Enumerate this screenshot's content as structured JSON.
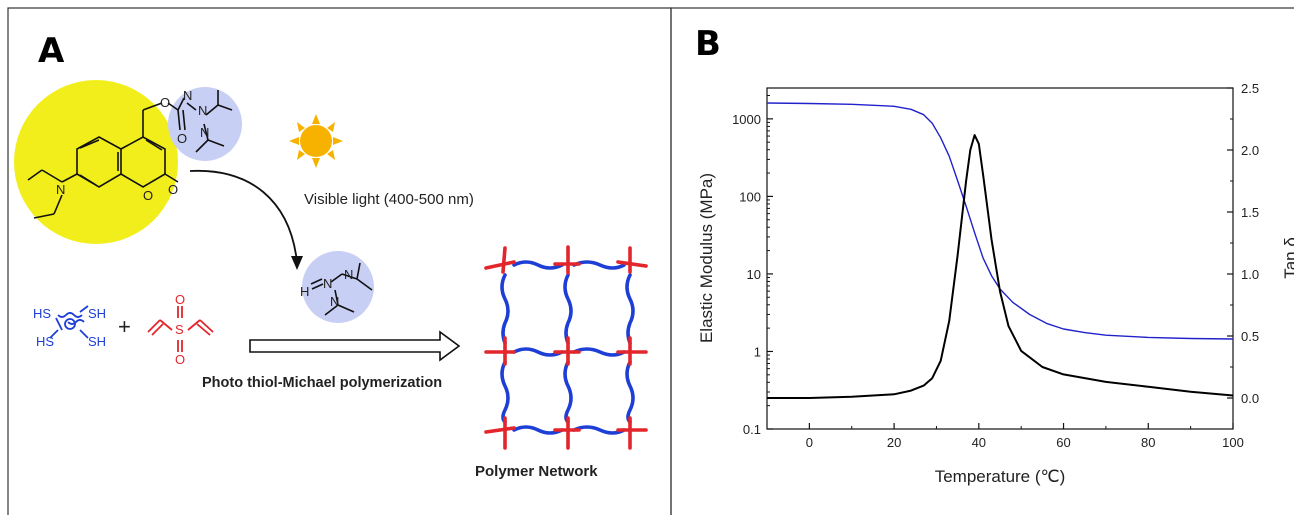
{
  "panels": {
    "a": {
      "letter": "A",
      "photoinitiator": {
        "amine_label": "N",
        "carbonyl_o": "O",
        "ring_o": "O",
        "ketone_o": "O",
        "tmg_labels": [
          "N",
          "N",
          "N"
        ]
      },
      "light_label": "Visible light (400-500 nm)",
      "base_labels": {
        "hn": "H",
        "n_dbl": "N",
        "n1": "N",
        "n2": "N"
      },
      "thiol_labels": [
        "HS",
        "SH",
        "HS",
        "SH"
      ],
      "plus": "+",
      "vinyl_sulfone_labels": {
        "s": "S",
        "o_top": "O",
        "o_bottom": "O"
      },
      "reaction_label": "Photo thiol-Michael polymerization",
      "network_label": "Polymer Network"
    },
    "b": {
      "letter": "B"
    }
  },
  "colors": {
    "sphere_yellow": "#f2ee1c",
    "sphere_blue": "#c8cff5",
    "sun": "#f7b200",
    "thiol_blue": "#1d3fd6",
    "vinyl_red": "#e3262b",
    "modulus_line": "#2222cc",
    "tan_line": "#000000"
  },
  "chart_data": {
    "type": "line",
    "xlabel": "Temperature (℃)",
    "ylabel_left": "Elastic Modulus (MPa)",
    "ylabel_right": "Tan δ",
    "xlim": [
      -10,
      100
    ],
    "ylim_left": [
      0.1,
      2500
    ],
    "ylim_right": [
      -0.25,
      2.5
    ],
    "left_scale": "log",
    "xticks": [
      0,
      20,
      40,
      60,
      80,
      100
    ],
    "yticks_left": [
      {
        "v": 0.1,
        "label": "0.1"
      },
      {
        "v": 1,
        "label": "1"
      },
      {
        "v": 10,
        "label": "10"
      },
      {
        "v": 100,
        "label": "100"
      },
      {
        "v": 1000,
        "label": "1000"
      }
    ],
    "yticks_right": [
      0.0,
      0.5,
      1.0,
      1.5,
      2.0,
      2.5
    ],
    "series": [
      {
        "axis": "left",
        "color": "#2222cc",
        "x": [
          -10,
          0,
          10,
          20,
          24,
          27,
          29,
          31,
          33,
          35,
          37,
          39,
          41,
          43,
          45,
          48,
          52,
          56,
          60,
          65,
          70,
          80,
          90,
          100
        ],
        "y": [
          1600,
          1580,
          1540,
          1450,
          1330,
          1130,
          880,
          570,
          330,
          160,
          75,
          34,
          16,
          9.5,
          6.4,
          4.3,
          3.0,
          2.3,
          1.95,
          1.75,
          1.62,
          1.52,
          1.47,
          1.45
        ]
      },
      {
        "axis": "right",
        "color": "#000000",
        "x": [
          -10,
          0,
          10,
          20,
          24,
          27,
          29,
          31,
          33,
          35,
          37,
          38,
          39,
          40,
          41,
          43,
          45,
          47,
          50,
          55,
          60,
          70,
          80,
          90,
          100
        ],
        "y": [
          0.0,
          0.0,
          0.01,
          0.03,
          0.06,
          0.1,
          0.16,
          0.3,
          0.62,
          1.15,
          1.75,
          2.0,
          2.12,
          2.05,
          1.8,
          1.28,
          0.86,
          0.58,
          0.38,
          0.25,
          0.19,
          0.13,
          0.09,
          0.05,
          0.02
        ]
      }
    ]
  }
}
